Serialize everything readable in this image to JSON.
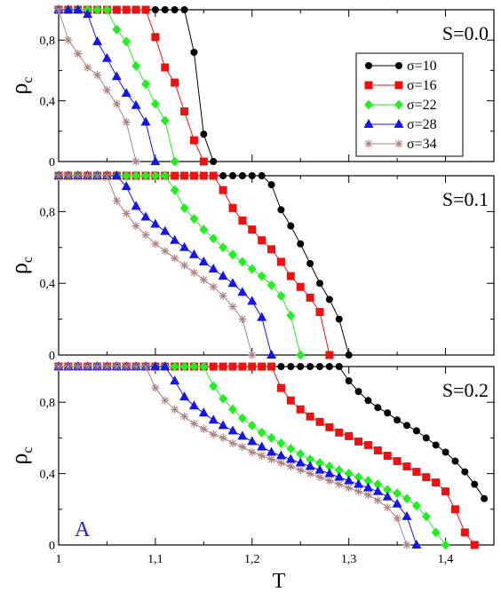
{
  "figure_letter": "A",
  "xlabel": "T",
  "colors": {
    "sigma10": "#000000",
    "sigma16": "#ee1111",
    "sigma22": "#22ee22",
    "sigma28": "#1515e8",
    "sigma34": "#b08080",
    "axis": "#000000",
    "letter": "#1f1fdd"
  },
  "chart_data": [
    {
      "type": "line",
      "panel_label": "S=0.0",
      "ylabel": "ρ",
      "ylabel_sub": "c",
      "xlim": [
        1.0,
        1.45
      ],
      "ylim": [
        0,
        1.0
      ],
      "xticks": [
        "1",
        "1,1",
        "1,2",
        "1,3",
        "1,4"
      ],
      "yticks": [
        "0",
        "0,4",
        "0,8"
      ],
      "legend": {
        "position": "top-right",
        "entries": [
          "σ=10",
          "σ=16",
          "σ=22",
          "σ=28",
          "σ=34"
        ]
      },
      "series": [
        {
          "name": "σ=10",
          "marker": "circle",
          "color": "#000000",
          "x": [
            1.0,
            1.01,
            1.02,
            1.03,
            1.04,
            1.05,
            1.06,
            1.07,
            1.08,
            1.09,
            1.1,
            1.11,
            1.12,
            1.13,
            1.14,
            1.15,
            1.16
          ],
          "y": [
            1,
            1,
            1,
            1,
            1,
            1,
            1,
            1,
            1,
            1,
            1,
            1,
            1,
            1,
            0.72,
            0.18,
            0.0
          ]
        },
        {
          "name": "σ=16",
          "marker": "square",
          "color": "#ee1111",
          "x": [
            1.0,
            1.01,
            1.02,
            1.03,
            1.04,
            1.05,
            1.06,
            1.07,
            1.08,
            1.09,
            1.1,
            1.11,
            1.12,
            1.13,
            1.14,
            1.15
          ],
          "y": [
            1,
            1,
            1,
            1,
            1,
            1,
            1,
            1,
            1,
            1,
            0.82,
            0.62,
            0.52,
            0.33,
            0.14,
            0.0
          ]
        },
        {
          "name": "σ=22",
          "marker": "diamond",
          "color": "#22ee22",
          "x": [
            1.0,
            1.01,
            1.02,
            1.03,
            1.04,
            1.05,
            1.06,
            1.07,
            1.08,
            1.09,
            1.1,
            1.11,
            1.12
          ],
          "y": [
            1,
            1,
            1,
            1,
            1,
            1,
            0.87,
            0.79,
            0.63,
            0.51,
            0.38,
            0.27,
            0.0
          ]
        },
        {
          "name": "σ=28",
          "marker": "triangle",
          "color": "#1515e8",
          "x": [
            1.0,
            1.01,
            1.02,
            1.03,
            1.04,
            1.05,
            1.06,
            1.07,
            1.08,
            1.09,
            1.1
          ],
          "y": [
            1,
            1,
            1,
            0.97,
            0.79,
            0.68,
            0.56,
            0.45,
            0.37,
            0.26,
            0.0
          ]
        },
        {
          "name": "σ=34",
          "marker": "star",
          "color": "#b08080",
          "x": [
            1.0,
            1.01,
            1.02,
            1.03,
            1.04,
            1.05,
            1.06,
            1.07,
            1.08
          ],
          "y": [
            1,
            0.8,
            0.71,
            0.62,
            0.57,
            0.47,
            0.38,
            0.26,
            0.0
          ]
        }
      ]
    },
    {
      "type": "line",
      "panel_label": "S=0.1",
      "ylabel": "ρ",
      "ylabel_sub": "c",
      "xlim": [
        1.0,
        1.45
      ],
      "ylim": [
        0,
        1.0
      ],
      "xticks": [
        "1",
        "1,1",
        "1,2",
        "1,3",
        "1,4"
      ],
      "yticks": [
        "0",
        "0,4",
        "0,8"
      ],
      "series": [
        {
          "name": "σ=10",
          "marker": "circle",
          "color": "#000000",
          "x": [
            1.0,
            1.01,
            1.02,
            1.03,
            1.04,
            1.05,
            1.06,
            1.07,
            1.08,
            1.09,
            1.1,
            1.11,
            1.12,
            1.13,
            1.14,
            1.15,
            1.16,
            1.17,
            1.18,
            1.19,
            1.2,
            1.21,
            1.22,
            1.23,
            1.24,
            1.25,
            1.26,
            1.27,
            1.28,
            1.29,
            1.3
          ],
          "y": [
            1,
            1,
            1,
            1,
            1,
            1,
            1,
            1,
            1,
            1,
            1,
            1,
            1,
            1,
            1,
            1,
            1,
            1,
            1,
            1,
            1,
            1,
            0.95,
            0.81,
            0.72,
            0.62,
            0.51,
            0.4,
            0.31,
            0.2,
            0.0
          ]
        },
        {
          "name": "σ=16",
          "marker": "square",
          "color": "#ee1111",
          "x": [
            1.0,
            1.01,
            1.02,
            1.03,
            1.04,
            1.05,
            1.06,
            1.07,
            1.08,
            1.09,
            1.1,
            1.11,
            1.12,
            1.13,
            1.14,
            1.15,
            1.16,
            1.17,
            1.18,
            1.19,
            1.2,
            1.21,
            1.22,
            1.23,
            1.24,
            1.25,
            1.26,
            1.27,
            1.28
          ],
          "y": [
            1,
            1,
            1,
            1,
            1,
            1,
            1,
            1,
            1,
            1,
            1,
            1,
            1,
            1,
            1,
            1,
            1,
            0.92,
            0.82,
            0.75,
            0.7,
            0.64,
            0.59,
            0.52,
            0.44,
            0.38,
            0.32,
            0.24,
            0.0
          ]
        },
        {
          "name": "σ=22",
          "marker": "diamond",
          "color": "#22ee22",
          "x": [
            1.0,
            1.01,
            1.02,
            1.03,
            1.04,
            1.05,
            1.06,
            1.07,
            1.08,
            1.09,
            1.1,
            1.11,
            1.12,
            1.13,
            1.14,
            1.15,
            1.16,
            1.17,
            1.18,
            1.19,
            1.2,
            1.21,
            1.22,
            1.23,
            1.24,
            1.25
          ],
          "y": [
            1,
            1,
            1,
            1,
            1,
            1,
            1,
            1,
            1,
            1,
            1,
            1,
            0.92,
            0.82,
            0.76,
            0.7,
            0.65,
            0.6,
            0.56,
            0.52,
            0.48,
            0.44,
            0.39,
            0.33,
            0.22,
            0.0
          ]
        },
        {
          "name": "σ=28",
          "marker": "triangle",
          "color": "#1515e8",
          "x": [
            1.0,
            1.01,
            1.02,
            1.03,
            1.04,
            1.05,
            1.06,
            1.07,
            1.08,
            1.09,
            1.1,
            1.11,
            1.12,
            1.13,
            1.14,
            1.15,
            1.16,
            1.17,
            1.18,
            1.19,
            1.2,
            1.21,
            1.22
          ],
          "y": [
            1,
            1,
            1,
            1,
            1,
            1,
            1,
            0.94,
            0.83,
            0.77,
            0.73,
            0.69,
            0.64,
            0.6,
            0.56,
            0.52,
            0.48,
            0.44,
            0.4,
            0.35,
            0.3,
            0.21,
            0.0
          ]
        },
        {
          "name": "σ=34",
          "marker": "star",
          "color": "#b08080",
          "x": [
            1.0,
            1.01,
            1.02,
            1.03,
            1.04,
            1.05,
            1.06,
            1.07,
            1.08,
            1.09,
            1.1,
            1.11,
            1.12,
            1.13,
            1.14,
            1.15,
            1.16,
            1.17,
            1.18,
            1.19,
            1.2
          ],
          "y": [
            1,
            1,
            1,
            1,
            1,
            1,
            0.86,
            0.79,
            0.72,
            0.67,
            0.62,
            0.58,
            0.54,
            0.5,
            0.46,
            0.42,
            0.38,
            0.33,
            0.27,
            0.2,
            0.0
          ]
        }
      ]
    },
    {
      "type": "line",
      "panel_label": "S=0.2",
      "ylabel": "ρ",
      "ylabel_sub": "c",
      "xlim": [
        1.0,
        1.45
      ],
      "ylim": [
        0,
        1.0
      ],
      "xticks": [
        "1",
        "1,1",
        "1,2",
        "1,3",
        "1,4"
      ],
      "yticks": [
        "0",
        "0,4",
        "0,8"
      ],
      "series": [
        {
          "name": "σ=10",
          "marker": "circle",
          "color": "#000000",
          "x": [
            1.0,
            1.01,
            1.02,
            1.03,
            1.04,
            1.05,
            1.06,
            1.07,
            1.08,
            1.09,
            1.1,
            1.11,
            1.12,
            1.13,
            1.14,
            1.15,
            1.16,
            1.17,
            1.18,
            1.19,
            1.2,
            1.21,
            1.22,
            1.23,
            1.24,
            1.25,
            1.26,
            1.27,
            1.28,
            1.29,
            1.3,
            1.31,
            1.32,
            1.33,
            1.34,
            1.35,
            1.36,
            1.37,
            1.38,
            1.39,
            1.4,
            1.41,
            1.42,
            1.43,
            1.44
          ],
          "y": [
            1,
            1,
            1,
            1,
            1,
            1,
            1,
            1,
            1,
            1,
            1,
            1,
            1,
            1,
            1,
            1,
            1,
            1,
            1,
            1,
            1,
            1,
            1,
            1,
            1,
            1,
            1,
            1,
            1,
            1,
            0.92,
            0.86,
            0.81,
            0.77,
            0.74,
            0.7,
            0.67,
            0.64,
            0.6,
            0.56,
            0.52,
            0.47,
            0.41,
            0.34,
            0.26
          ]
        },
        {
          "name": "σ=16",
          "marker": "square",
          "color": "#ee1111",
          "x": [
            1.0,
            1.01,
            1.02,
            1.03,
            1.04,
            1.05,
            1.06,
            1.07,
            1.08,
            1.09,
            1.1,
            1.11,
            1.12,
            1.13,
            1.14,
            1.15,
            1.16,
            1.17,
            1.18,
            1.19,
            1.2,
            1.21,
            1.22,
            1.23,
            1.24,
            1.25,
            1.26,
            1.27,
            1.28,
            1.29,
            1.3,
            1.31,
            1.32,
            1.33,
            1.34,
            1.35,
            1.36,
            1.37,
            1.38,
            1.39,
            1.4,
            1.41,
            1.42,
            1.43
          ],
          "y": [
            1,
            1,
            1,
            1,
            1,
            1,
            1,
            1,
            1,
            1,
            1,
            1,
            1,
            1,
            1,
            1,
            1,
            1,
            1,
            1,
            1,
            1,
            1,
            0.88,
            0.81,
            0.76,
            0.72,
            0.69,
            0.66,
            0.63,
            0.61,
            0.58,
            0.56,
            0.53,
            0.5,
            0.47,
            0.44,
            0.41,
            0.38,
            0.35,
            0.3,
            0.2,
            0.07,
            0.0
          ]
        },
        {
          "name": "σ=22",
          "marker": "diamond",
          "color": "#22ee22",
          "x": [
            1.0,
            1.01,
            1.02,
            1.03,
            1.04,
            1.05,
            1.06,
            1.07,
            1.08,
            1.09,
            1.1,
            1.11,
            1.12,
            1.13,
            1.14,
            1.15,
            1.16,
            1.17,
            1.18,
            1.19,
            1.2,
            1.21,
            1.22,
            1.23,
            1.24,
            1.25,
            1.26,
            1.27,
            1.28,
            1.29,
            1.3,
            1.31,
            1.32,
            1.33,
            1.34,
            1.35,
            1.36,
            1.37,
            1.38,
            1.39,
            1.4
          ],
          "y": [
            1,
            1,
            1,
            1,
            1,
            1,
            1,
            1,
            1,
            1,
            1,
            1,
            1,
            1,
            1,
            1,
            0.89,
            0.82,
            0.76,
            0.71,
            0.67,
            0.63,
            0.6,
            0.57,
            0.54,
            0.51,
            0.48,
            0.46,
            0.44,
            0.42,
            0.4,
            0.38,
            0.36,
            0.34,
            0.31,
            0.29,
            0.26,
            0.22,
            0.16,
            0.07,
            0.0
          ]
        },
        {
          "name": "σ=28",
          "marker": "triangle",
          "color": "#1515e8",
          "x": [
            1.0,
            1.01,
            1.02,
            1.03,
            1.04,
            1.05,
            1.06,
            1.07,
            1.08,
            1.09,
            1.1,
            1.11,
            1.12,
            1.13,
            1.14,
            1.15,
            1.16,
            1.17,
            1.18,
            1.19,
            1.2,
            1.21,
            1.22,
            1.23,
            1.24,
            1.25,
            1.26,
            1.27,
            1.28,
            1.29,
            1.3,
            1.31,
            1.32,
            1.33,
            1.34,
            1.35,
            1.36,
            1.37
          ],
          "y": [
            1,
            1,
            1,
            1,
            1,
            1,
            1,
            1,
            1,
            1,
            1,
            1,
            0.92,
            0.83,
            0.78,
            0.74,
            0.7,
            0.67,
            0.64,
            0.61,
            0.58,
            0.55,
            0.52,
            0.5,
            0.48,
            0.46,
            0.44,
            0.42,
            0.4,
            0.38,
            0.36,
            0.34,
            0.32,
            0.3,
            0.27,
            0.23,
            0.16,
            0.0
          ]
        },
        {
          "name": "σ=34",
          "marker": "star",
          "color": "#b08080",
          "x": [
            1.0,
            1.01,
            1.02,
            1.03,
            1.04,
            1.05,
            1.06,
            1.07,
            1.08,
            1.09,
            1.1,
            1.11,
            1.12,
            1.13,
            1.14,
            1.15,
            1.16,
            1.17,
            1.18,
            1.19,
            1.2,
            1.21,
            1.22,
            1.23,
            1.24,
            1.25,
            1.26,
            1.27,
            1.28,
            1.29,
            1.3,
            1.31,
            1.32,
            1.33,
            1.34,
            1.35,
            1.36
          ],
          "y": [
            1,
            1,
            1,
            1,
            1,
            1,
            1,
            1,
            1,
            1,
            0.88,
            0.81,
            0.76,
            0.72,
            0.68,
            0.65,
            0.62,
            0.6,
            0.57,
            0.55,
            0.52,
            0.5,
            0.48,
            0.46,
            0.44,
            0.42,
            0.4,
            0.38,
            0.36,
            0.34,
            0.32,
            0.3,
            0.28,
            0.25,
            0.21,
            0.15,
            0.0
          ]
        }
      ]
    }
  ]
}
